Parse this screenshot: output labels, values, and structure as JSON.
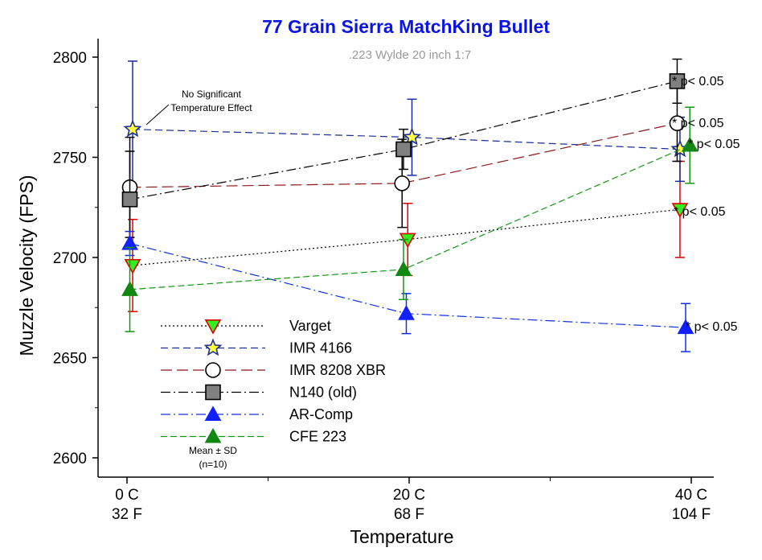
{
  "chart_data": {
    "type": "line",
    "title": "77 Grain Sierra MatchKing Bullet",
    "subtitle": ".223 Wylde 20 inch 1:7",
    "xlabel": "Temperature",
    "ylabel": "Muzzle Velocity (FPS)",
    "ylim": [
      2590,
      2810
    ],
    "yticks": [
      2600,
      2650,
      2700,
      2750,
      2800
    ],
    "x": [
      0,
      20,
      40
    ],
    "xtick_labels": [
      [
        "0 C",
        "32 F"
      ],
      [
        "20 C",
        "68 F"
      ],
      [
        "40 C",
        "104 F"
      ]
    ],
    "grid": false,
    "legend_position": "bottom-left",
    "legend_note": [
      "Mean ± SD",
      "(n=10)"
    ],
    "annotation": [
      "No Significant",
      "Temperature Effect"
    ],
    "significance_label": "* p< 0.05",
    "colors": {
      "title": "#0a14e6",
      "subtitle": "#9a9a9a",
      "varget_line": "#000000",
      "varget_err": "#e00000",
      "varget_marker_fill": "#33ee22",
      "varget_marker_stroke": "#e00000",
      "imr4166_line": "#1a2e9a",
      "imr4166_marker_fill": "#ffff44",
      "imr8208_line": "#8b1a1a",
      "imr8208_marker_fill": "#ffffff",
      "n140_line": "#000000",
      "n140_marker_fill": "#808080",
      "arcomp_line": "#1030e0",
      "arcomp_marker_fill": "#1020ff",
      "cfe_line": "#119911",
      "cfe_marker_fill": "#118811"
    },
    "series": [
      {
        "name": "Varget",
        "marker": "triangle-down",
        "dash": "dotted",
        "x": [
          0.4,
          19.9,
          39.2
        ],
        "values": [
          2696,
          2709,
          2724
        ],
        "sd": [
          23,
          18,
          24
        ],
        "significant": true
      },
      {
        "name": "IMR 4166",
        "marker": "star",
        "dash": "dashed",
        "x": [
          0.4,
          20.2,
          39.2
        ],
        "values": [
          2764,
          2760,
          2754
        ],
        "sd": [
          34,
          19,
          16
        ],
        "significant": false
      },
      {
        "name": "IMR 8208 XBR",
        "marker": "circle",
        "dash": "longdash",
        "x": [
          0.2,
          19.5,
          39.0
        ],
        "values": [
          2735,
          2737,
          2767
        ],
        "sd": [
          25,
          22,
          19
        ],
        "significant": true
      },
      {
        "name": "N140 (old)",
        "marker": "square",
        "dash": "dashdot",
        "x": [
          0.2,
          19.6,
          39.0
        ],
        "values": [
          2729,
          2754,
          2788
        ],
        "sd": [
          24,
          10,
          11
        ],
        "significant": true
      },
      {
        "name": "AR-Comp",
        "marker": "triangle-up",
        "dash": "dashdotblue",
        "x": [
          0.2,
          19.8,
          39.6
        ],
        "values": [
          2707,
          2672,
          2665
        ],
        "sd": [
          6,
          10,
          12
        ],
        "significant": true
      },
      {
        "name": "CFE 223",
        "marker": "triangle-up",
        "dash": "dashed",
        "x": [
          0.2,
          19.6,
          39.9
        ],
        "values": [
          2684,
          2694,
          2756
        ],
        "sd": [
          21,
          15,
          19
        ],
        "significant": true
      }
    ]
  }
}
